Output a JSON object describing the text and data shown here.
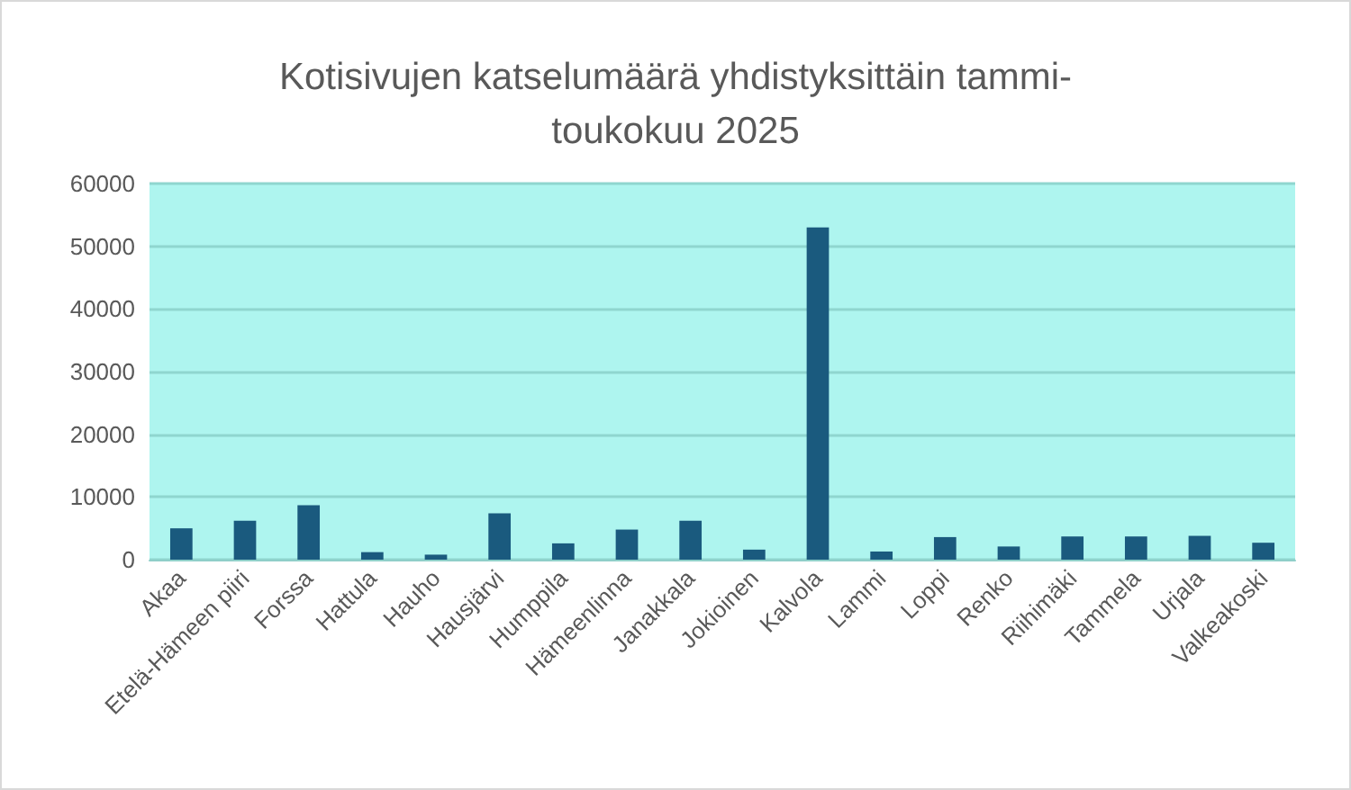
{
  "chart_data": {
    "type": "bar",
    "title": "Kotisivujen katselumäärä yhdistyksittäin tammi-\ntoukokuu 2025",
    "categories": [
      "Akaa",
      "Etelä-Hämeen piiri",
      "Forssa",
      "Hattula",
      "Hauho",
      "Hausjärvi",
      "Humppila",
      "Hämeenlinna",
      "Janakkala",
      "Jokioinen",
      "Kalvola",
      "Lammi",
      "Loppi",
      "Renko",
      "Riihimäki",
      "Tammela",
      "Urjala",
      "Valkeakoski"
    ],
    "values": [
      5000,
      6200,
      8700,
      1200,
      800,
      7400,
      2600,
      4800,
      6200,
      1600,
      53000,
      1300,
      3600,
      2100,
      3700,
      3700,
      3800,
      2700
    ],
    "color": "#1a5a7e",
    "ylim": [
      0,
      60000
    ],
    "yticks": [
      0,
      10000,
      20000,
      30000,
      40000,
      50000,
      60000
    ],
    "grid": "y"
  }
}
